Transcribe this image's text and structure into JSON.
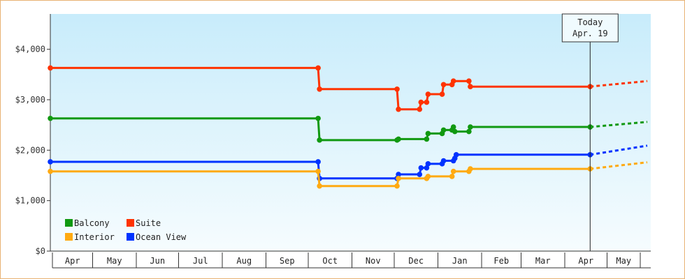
{
  "chart_data": {
    "type": "line",
    "title": "",
    "xlabel": "",
    "ylabel": "",
    "ylim": [
      0,
      4700
    ],
    "y_ticks": [
      {
        "value": 0,
        "label": "$0"
      },
      {
        "value": 1000,
        "label": "$1,000"
      },
      {
        "value": 2000,
        "label": "$2,000"
      },
      {
        "value": 3000,
        "label": "$3,000"
      },
      {
        "value": 4000,
        "label": "$4,000"
      }
    ],
    "x_range": [
      "2024-04-01",
      "2025-06-01"
    ],
    "months": [
      {
        "label": "Apr",
        "start": "2024-04-01"
      },
      {
        "label": "May",
        "start": "2024-05-01"
      },
      {
        "label": "Jun",
        "start": "2024-06-01"
      },
      {
        "label": "Jul",
        "start": "2024-07-01"
      },
      {
        "label": "Aug",
        "start": "2024-08-01"
      },
      {
        "label": "Sep",
        "start": "2024-09-01"
      },
      {
        "label": "Oct",
        "start": "2024-10-01"
      },
      {
        "label": "Nov",
        "start": "2024-11-01"
      },
      {
        "label": "Dec",
        "start": "2024-12-01"
      },
      {
        "label": "Jan",
        "start": "2025-01-01"
      },
      {
        "label": "Feb",
        "start": "2025-02-01"
      },
      {
        "label": "Mar",
        "start": "2025-03-01"
      },
      {
        "label": "Apr",
        "start": "2025-04-01"
      },
      {
        "label": "May",
        "start": "2025-05-01"
      }
    ],
    "today": {
      "line1": "Today",
      "line2": "Apr. 19",
      "date": "2025-04-19"
    },
    "projection_end": "2025-06-01",
    "legend_position": "bottom-left",
    "series": [
      {
        "name": "Suite",
        "color": "#ff3300",
        "projection_end_value": 3370,
        "points": [
          [
            "2024-04-01",
            3630
          ],
          [
            "2024-10-08",
            3630
          ],
          [
            "2024-10-09",
            3210
          ],
          [
            "2024-12-03",
            3210
          ],
          [
            "2024-12-04",
            2810
          ],
          [
            "2024-12-19",
            2810
          ],
          [
            "2024-12-20",
            2950
          ],
          [
            "2024-12-24",
            2950
          ],
          [
            "2024-12-25",
            3110
          ],
          [
            "2025-01-04",
            3110
          ],
          [
            "2025-01-05",
            3300
          ],
          [
            "2025-01-11",
            3300
          ],
          [
            "2025-01-12",
            3370
          ],
          [
            "2025-01-23",
            3370
          ],
          [
            "2025-01-24",
            3260
          ],
          [
            "2025-04-19",
            3260
          ]
        ]
      },
      {
        "name": "Balcony",
        "color": "#119911",
        "projection_end_value": 2560,
        "points": [
          [
            "2024-04-01",
            2630
          ],
          [
            "2024-10-08",
            2630
          ],
          [
            "2024-10-09",
            2200
          ],
          [
            "2024-12-03",
            2200
          ],
          [
            "2024-12-04",
            2220
          ],
          [
            "2024-12-24",
            2220
          ],
          [
            "2024-12-25",
            2330
          ],
          [
            "2025-01-04",
            2330
          ],
          [
            "2025-01-05",
            2400
          ],
          [
            "2025-01-11",
            2400
          ],
          [
            "2025-01-12",
            2460
          ],
          [
            "2025-01-13",
            2370
          ],
          [
            "2025-01-23",
            2370
          ],
          [
            "2025-01-24",
            2460
          ],
          [
            "2025-04-19",
            2460
          ]
        ]
      },
      {
        "name": "Ocean View",
        "color": "#0033ff",
        "projection_end_value": 2090,
        "points": [
          [
            "2024-04-01",
            1770
          ],
          [
            "2024-10-08",
            1770
          ],
          [
            "2024-10-09",
            1440
          ],
          [
            "2024-12-03",
            1440
          ],
          [
            "2024-12-04",
            1520
          ],
          [
            "2024-12-19",
            1520
          ],
          [
            "2024-12-20",
            1650
          ],
          [
            "2024-12-24",
            1650
          ],
          [
            "2024-12-25",
            1730
          ],
          [
            "2025-01-04",
            1730
          ],
          [
            "2025-01-05",
            1790
          ],
          [
            "2025-01-12",
            1790
          ],
          [
            "2025-01-13",
            1840
          ],
          [
            "2025-01-14",
            1910
          ],
          [
            "2025-04-19",
            1910
          ]
        ]
      },
      {
        "name": "Interior",
        "color": "#ffaa11",
        "projection_end_value": 1760,
        "points": [
          [
            "2024-04-01",
            1580
          ],
          [
            "2024-10-08",
            1580
          ],
          [
            "2024-10-09",
            1290
          ],
          [
            "2024-12-03",
            1290
          ],
          [
            "2024-12-04",
            1440
          ],
          [
            "2024-12-24",
            1440
          ],
          [
            "2024-12-25",
            1480
          ],
          [
            "2025-01-11",
            1480
          ],
          [
            "2025-01-12",
            1580
          ],
          [
            "2025-01-23",
            1580
          ],
          [
            "2025-01-24",
            1630
          ],
          [
            "2025-04-19",
            1630
          ]
        ]
      }
    ],
    "legend": [
      {
        "series": "Balcony",
        "color": "#119911"
      },
      {
        "series": "Suite",
        "color": "#ff3300"
      },
      {
        "series": "Interior",
        "color": "#ffaa11"
      },
      {
        "series": "Ocean View",
        "color": "#0033ff"
      }
    ]
  }
}
